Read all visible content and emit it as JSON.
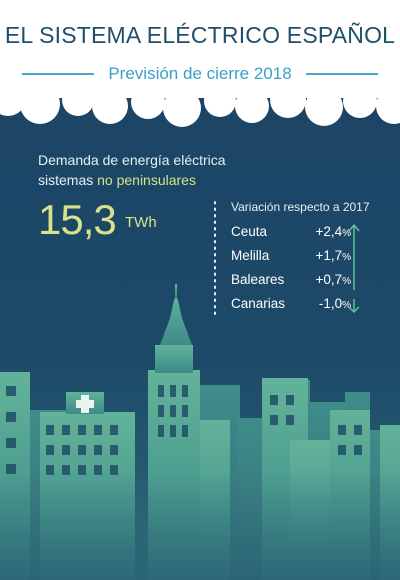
{
  "header": {
    "title": "EL SISTEMA ELÉCTRICO ESPAÑOL",
    "subtitle": "Previsión de cierre 2018"
  },
  "demand": {
    "label_line1": "Demanda de energía eléctrica",
    "label_line2_prefix": "sistemas ",
    "label_line2_highlight": "no peninsulares",
    "value": "15,3",
    "unit": "TWh"
  },
  "variation": {
    "title": "Variación respecto a 2017",
    "rows": [
      {
        "name": "Ceuta",
        "value": "+2,4",
        "unit": "%",
        "trend": "up"
      },
      {
        "name": "Melilla",
        "value": "+1,7",
        "unit": "%",
        "trend": "up"
      },
      {
        "name": "Baleares",
        "value": "+0,7",
        "unit": "%",
        "trend": "up"
      },
      {
        "name": "Canarias",
        "value": "-1,0",
        "unit": "%",
        "trend": "down"
      }
    ]
  },
  "colors": {
    "navy": "#1c4466",
    "teal": "#3e8f8e",
    "accent_yellow": "#d7e28a",
    "accent_blue": "#3aa0c8",
    "arrow_green": "#5fc39a"
  },
  "icons": [
    "cloud-edge",
    "arrow-up-icon",
    "arrow-down-icon",
    "city-skyline",
    "medical-cross-icon"
  ]
}
